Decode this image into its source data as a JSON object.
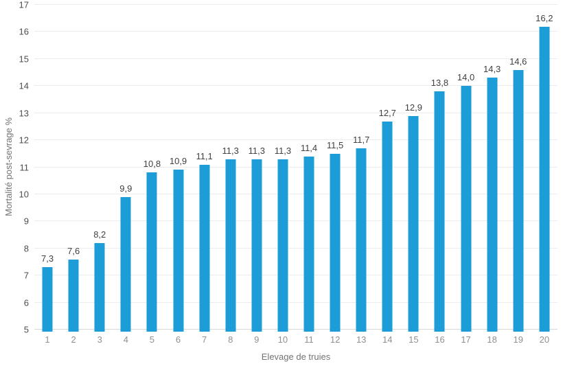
{
  "chart_data": {
    "type": "bar",
    "title": "",
    "xlabel": "Elevage de truies",
    "ylabel": "Mortalité post-sevrage %",
    "categories": [
      "1",
      "2",
      "3",
      "4",
      "5",
      "6",
      "7",
      "8",
      "9",
      "10",
      "11",
      "12",
      "13",
      "14",
      "15",
      "16",
      "17",
      "18",
      "19",
      "20"
    ],
    "values": [
      7.3,
      7.6,
      8.2,
      9.9,
      10.8,
      10.9,
      11.1,
      11.3,
      11.3,
      11.3,
      11.4,
      11.5,
      11.7,
      12.7,
      12.9,
      13.8,
      14.0,
      14.3,
      14.6,
      16.2
    ],
    "value_labels": [
      "7,3",
      "7,6",
      "8,2",
      "9,9",
      "10,8",
      "10,9",
      "11,1",
      "11,3",
      "11,3",
      "11,3",
      "11,4",
      "11,5",
      "11,7",
      "12,7",
      "12,9",
      "13,8",
      "14,0",
      "14,3",
      "14,6",
      "16,2"
    ],
    "ylim": [
      5,
      17
    ],
    "ytick_step": 1,
    "ytick_labels": [
      "5",
      "6",
      "7",
      "8",
      "9",
      "10",
      "11",
      "12",
      "13",
      "14",
      "15",
      "16",
      "17"
    ],
    "grid": "horizontal",
    "legend": "none",
    "colors": {
      "bar": "#1c9dd8",
      "gridline": "#ececec",
      "baseline": "#d8d8d8",
      "ytick_text": "#4d4d4d",
      "xtick_text": "#8f8f8f",
      "data_label_text": "#404040",
      "axis_title_text": "#737373",
      "background": "#ffffff"
    }
  }
}
